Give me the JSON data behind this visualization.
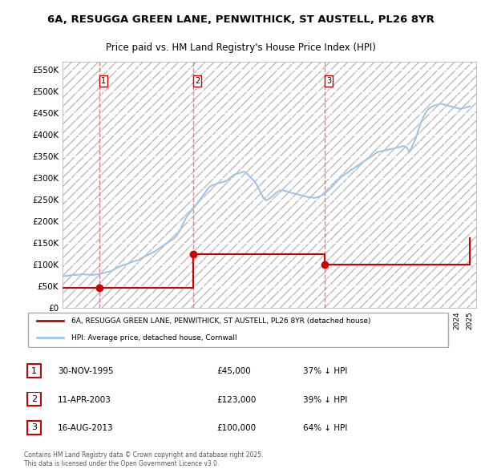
{
  "title": "6A, RESUGGA GREEN LANE, PENWITHICK, ST AUSTELL, PL26 8YR",
  "subtitle": "Price paid vs. HM Land Registry's House Price Index (HPI)",
  "ylim": [
    0,
    570000
  ],
  "yticks": [
    0,
    50000,
    100000,
    150000,
    200000,
    250000,
    300000,
    350000,
    400000,
    450000,
    500000,
    550000
  ],
  "ytick_labels": [
    "£0",
    "£50K",
    "£100K",
    "£150K",
    "£200K",
    "£250K",
    "£300K",
    "£350K",
    "£400K",
    "£450K",
    "£500K",
    "£550K"
  ],
  "xlim_start": 1993.0,
  "xlim_end": 2025.5,
  "background_color": "#ffffff",
  "plot_bg_color": "#f0f0f0",
  "hatch_color": "#cccccc",
  "grid_color": "#ffffff",
  "sale_color": "#cc0000",
  "hpi_color": "#a0c4e8",
  "vline_color": "#ff6666",
  "sales": [
    {
      "year": 1995.917,
      "price": 45000,
      "label": "1"
    },
    {
      "year": 2003.283,
      "price": 123000,
      "label": "2"
    },
    {
      "year": 2013.625,
      "price": 100000,
      "label": "3"
    }
  ],
  "legend_sale_label": "6A, RESUGGA GREEN LANE, PENWITHICK, ST AUSTELL, PL26 8YR (detached house)",
  "legend_hpi_label": "HPI: Average price, detached house, Cornwall",
  "table_rows": [
    {
      "num": "1",
      "date": "30-NOV-1995",
      "price": "£45,000",
      "pct": "37% ↓ HPI"
    },
    {
      "num": "2",
      "date": "11-APR-2003",
      "price": "£123,000",
      "pct": "39% ↓ HPI"
    },
    {
      "num": "3",
      "date": "16-AUG-2013",
      "price": "£100,000",
      "pct": "64% ↓ HPI"
    }
  ],
  "footer": "Contains HM Land Registry data © Crown copyright and database right 2025.\nThis data is licensed under the Open Government Licence v3.0.",
  "hpi_data_x": [
    1993.0,
    1993.25,
    1993.5,
    1993.75,
    1994.0,
    1994.25,
    1994.5,
    1994.75,
    1995.0,
    1995.25,
    1995.5,
    1995.75,
    1996.0,
    1996.25,
    1996.5,
    1996.75,
    1997.0,
    1997.25,
    1997.5,
    1997.75,
    1998.0,
    1998.25,
    1998.5,
    1998.75,
    1999.0,
    1999.25,
    1999.5,
    1999.75,
    2000.0,
    2000.25,
    2000.5,
    2000.75,
    2001.0,
    2001.25,
    2001.5,
    2001.75,
    2002.0,
    2002.25,
    2002.5,
    2002.75,
    2003.0,
    2003.25,
    2003.5,
    2003.75,
    2004.0,
    2004.25,
    2004.5,
    2004.75,
    2005.0,
    2005.25,
    2005.5,
    2005.75,
    2006.0,
    2006.25,
    2006.5,
    2006.75,
    2007.0,
    2007.25,
    2007.5,
    2007.75,
    2008.0,
    2008.25,
    2008.5,
    2008.75,
    2009.0,
    2009.25,
    2009.5,
    2009.75,
    2010.0,
    2010.25,
    2010.5,
    2010.75,
    2011.0,
    2011.25,
    2011.5,
    2011.75,
    2012.0,
    2012.25,
    2012.5,
    2012.75,
    2013.0,
    2013.25,
    2013.5,
    2013.75,
    2014.0,
    2014.25,
    2014.5,
    2014.75,
    2015.0,
    2015.25,
    2015.5,
    2015.75,
    2016.0,
    2016.25,
    2016.5,
    2016.75,
    2017.0,
    2017.25,
    2017.5,
    2017.75,
    2018.0,
    2018.25,
    2018.5,
    2018.75,
    2019.0,
    2019.25,
    2019.5,
    2019.75,
    2020.0,
    2020.25,
    2020.5,
    2020.75,
    2021.0,
    2021.25,
    2021.5,
    2021.75,
    2022.0,
    2022.25,
    2022.5,
    2022.75,
    2023.0,
    2023.25,
    2023.5,
    2023.75,
    2024.0,
    2024.25,
    2024.5,
    2024.75,
    2025.0
  ],
  "hpi_data_y": [
    72000,
    73000,
    74000,
    75000,
    75500,
    76000,
    77000,
    76500,
    76000,
    75500,
    76000,
    77000,
    78000,
    80000,
    82000,
    84000,
    87000,
    91000,
    95000,
    98000,
    100000,
    103000,
    106000,
    108000,
    110000,
    115000,
    119000,
    122000,
    126000,
    130000,
    135000,
    140000,
    145000,
    150000,
    155000,
    160000,
    168000,
    180000,
    196000,
    210000,
    220000,
    228000,
    238000,
    248000,
    258000,
    268000,
    278000,
    283000,
    285000,
    288000,
    290000,
    292000,
    296000,
    302000,
    308000,
    310000,
    312000,
    315000,
    310000,
    302000,
    295000,
    285000,
    270000,
    255000,
    248000,
    252000,
    258000,
    265000,
    270000,
    272000,
    270000,
    268000,
    265000,
    264000,
    262000,
    260000,
    258000,
    256000,
    255000,
    254000,
    255000,
    258000,
    262000,
    268000,
    275000,
    282000,
    290000,
    298000,
    305000,
    310000,
    315000,
    320000,
    325000,
    330000,
    335000,
    340000,
    345000,
    350000,
    355000,
    360000,
    362000,
    363000,
    365000,
    367000,
    368000,
    370000,
    372000,
    374000,
    372000,
    360000,
    375000,
    392000,
    415000,
    435000,
    450000,
    460000,
    465000,
    468000,
    470000,
    472000,
    470000,
    468000,
    466000,
    464000,
    462000,
    460000,
    462000,
    464000,
    466000
  ],
  "sale_line_x": [
    1993.0,
    1995.917,
    2003.283,
    2013.625,
    2025.0
  ],
  "sale_line_y": [
    45000,
    45000,
    123000,
    100000,
    160000
  ]
}
